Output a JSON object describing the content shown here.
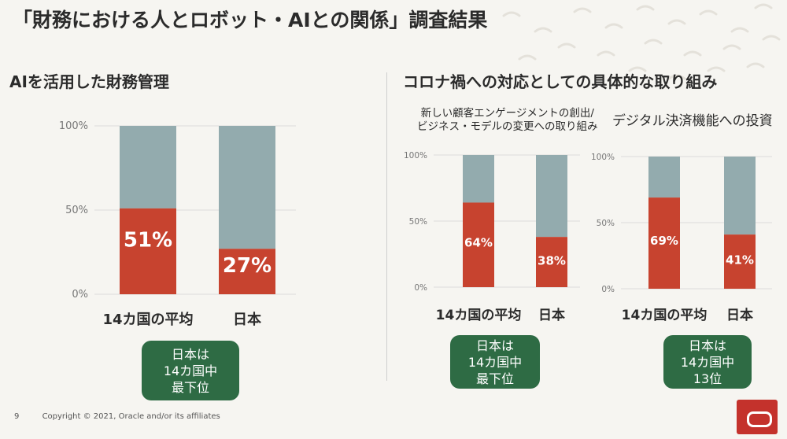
{
  "slide": {
    "title": "「財務における人とロボット・AIとの関係」調査結果",
    "page_number": "9",
    "copyright": "Copyright © 2021, Oracle and/or its affiliates"
  },
  "left_section": {
    "title": "AIを活用した財務管理"
  },
  "right_section": {
    "title": "コロナ禍への対応としての具体的な取り組み",
    "chart1_title_line1": "新しい顧客エンゲージメントの創出/",
    "chart1_title_line2": "ビジネス・モデルの変更への取り組み",
    "chart2_title": "デジタル決済機能への投資"
  },
  "badges": {
    "left": [
      "日本は",
      "14カ国中",
      "最下位"
    ],
    "right1": [
      "日本は",
      "14カ国中",
      "最下位"
    ],
    "right2": [
      "日本は",
      "14カ国中",
      "13位"
    ]
  },
  "colors": {
    "primary": "#c7432f",
    "remainder": "#93abae",
    "badge": "#2e6b44",
    "brand": "#c4322c"
  },
  "chart_data": [
    {
      "type": "bar",
      "stacked": true,
      "title": "AIを活用した財務管理",
      "categories": [
        "14カ国の平均",
        "日本"
      ],
      "values": [
        51,
        27
      ],
      "value_labels": [
        "51%",
        "27%"
      ],
      "ylim": [
        0,
        100
      ],
      "yticks": [
        "0%",
        "50%",
        "100%"
      ],
      "grid": true
    },
    {
      "type": "bar",
      "stacked": true,
      "title": "新しい顧客エンゲージメントの創出/ビジネス・モデルの変更への取り組み",
      "categories": [
        "14カ国の平均",
        "日本"
      ],
      "values": [
        64,
        38
      ],
      "value_labels": [
        "64%",
        "38%"
      ],
      "ylim": [
        0,
        100
      ],
      "yticks": [
        "0%",
        "50%",
        "100%"
      ],
      "grid": true
    },
    {
      "type": "bar",
      "stacked": true,
      "title": "デジタル決済機能への投資",
      "categories": [
        "14カ国の平均",
        "日本"
      ],
      "values": [
        69,
        41
      ],
      "value_labels": [
        "69%",
        "41%"
      ],
      "ylim": [
        0,
        100
      ],
      "yticks": [
        "0%",
        "50%",
        "100%"
      ],
      "grid": true
    }
  ]
}
